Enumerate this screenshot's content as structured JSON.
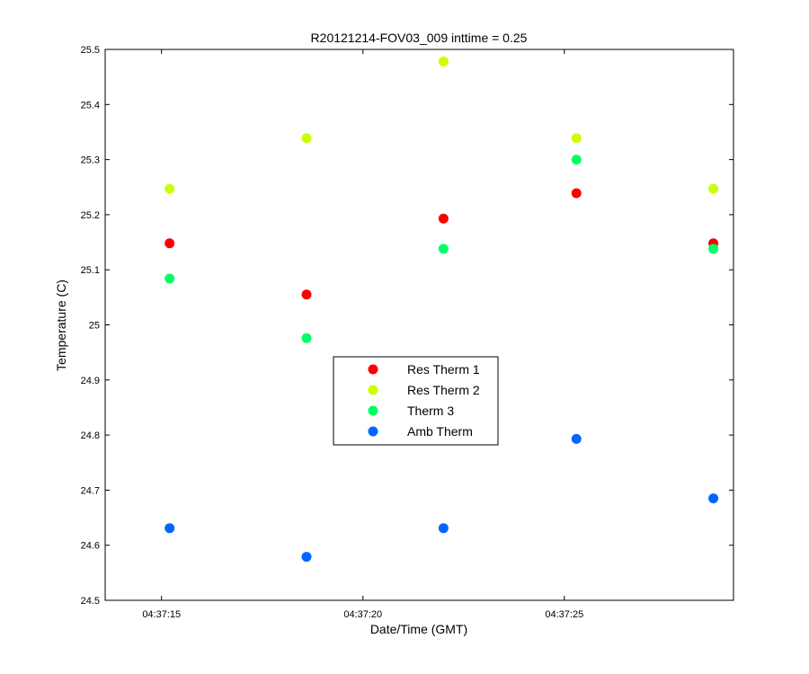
{
  "chart_data": {
    "type": "scatter",
    "title": "R20121214-FOV03_009 inttime = 0.25",
    "xlabel": "Date/Time (GMT)",
    "ylabel": "Temperature (C)",
    "xlim": [
      "04:37:13.6",
      "04:37:29.2"
    ],
    "ylim": [
      24.5,
      25.5
    ],
    "x_ticks": [
      "04:37:15",
      "04:37:20",
      "04:37:25"
    ],
    "y_ticks": [
      24.5,
      24.6,
      24.7,
      24.8,
      24.9,
      25,
      25.1,
      25.2,
      25.3,
      25.4,
      25.5
    ],
    "x": [
      "04:37:15.2",
      "04:37:18.6",
      "04:37:22.0",
      "04:37:25.3",
      "04:37:28.7"
    ],
    "grid": false,
    "legend_position": "center",
    "series": [
      {
        "name": "Res Therm 1",
        "color": "#ff0000",
        "values": [
          25.148,
          25.055,
          25.193,
          25.239,
          25.148
        ]
      },
      {
        "name": "Res Therm 2",
        "color": "#ccff00",
        "values": [
          25.247,
          25.339,
          25.478,
          25.339,
          25.247
        ]
      },
      {
        "name": "Therm 3",
        "color": "#00ff66",
        "values": [
          25.084,
          24.976,
          25.138,
          25.3,
          25.138
        ]
      },
      {
        "name": "Amb Therm",
        "color": "#0066ff",
        "values": [
          24.631,
          24.579,
          24.631,
          24.793,
          24.685
        ]
      }
    ]
  }
}
